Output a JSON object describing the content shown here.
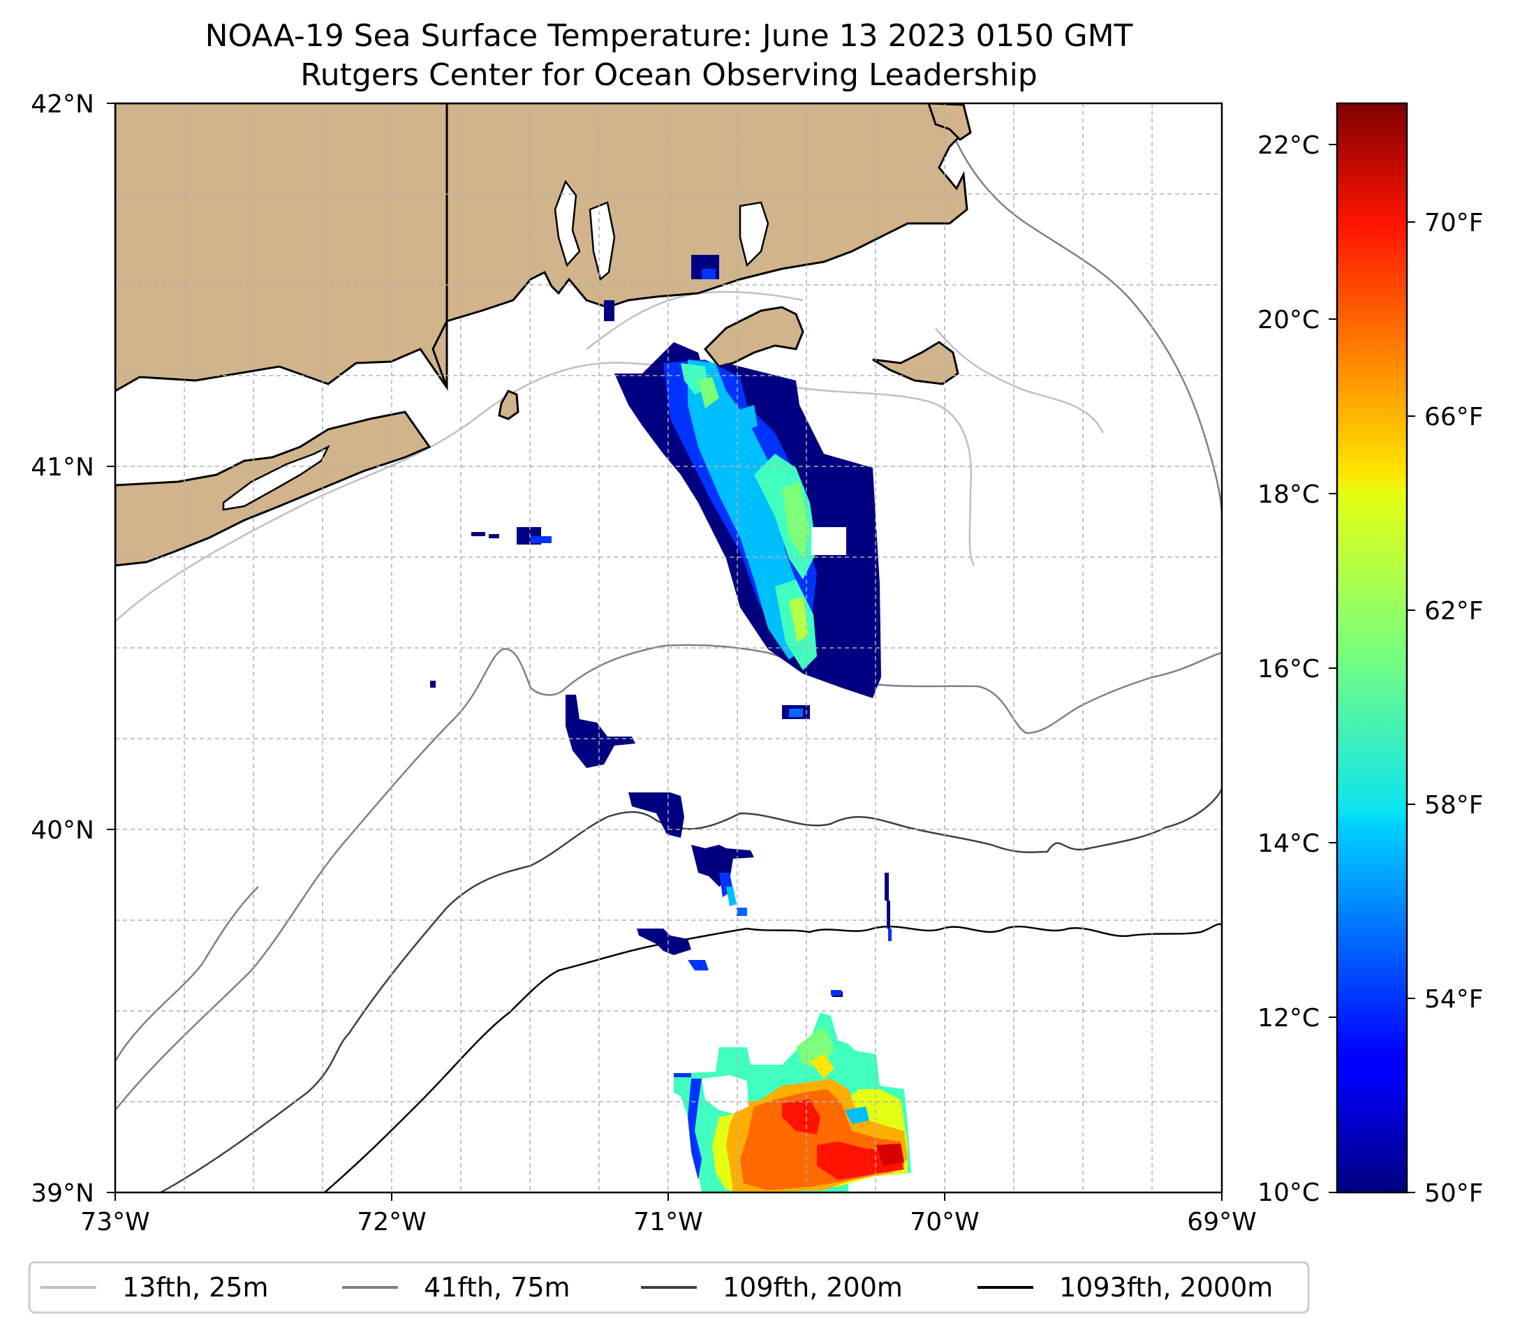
{
  "title_line1": "NOAA-19 Sea Surface Temperature: June 13 2023 0150 GMT",
  "title_line2": "Rutgers Center for Ocean Observing Leadership",
  "colors": {
    "land": "#d2b48c",
    "coast": "#000000",
    "grid": "#b0b0b0"
  },
  "chart_data": {
    "type": "heatmap",
    "title": "NOAA-19 Sea Surface Temperature: June 13 2023 0150 GMT",
    "subtitle": "Rutgers Center for Ocean Observing Leadership",
    "lon_range": [
      -73,
      -69
    ],
    "lat_range": [
      39,
      42
    ],
    "x_ticks": [
      "73°W",
      "72°W",
      "71°W",
      "70°W",
      "69°W"
    ],
    "x_tick_values": [
      -73,
      -72,
      -71,
      -70,
      -69
    ],
    "y_ticks": [
      "42°N",
      "41°N",
      "40°N",
      "39°N"
    ],
    "y_tick_values": [
      42,
      41,
      40,
      39
    ],
    "colorbar": {
      "cmap": "jet",
      "range_c": [
        10,
        22.5
      ],
      "celsius_ticks": [
        "22°C",
        "20°C",
        "18°C",
        "16°C",
        "14°C",
        "12°C",
        "10°C"
      ],
      "celsius_values": [
        22,
        20,
        18,
        16,
        14,
        12,
        10
      ],
      "fahrenheit_ticks": [
        "70°F",
        "66°F",
        "62°F",
        "58°F",
        "54°F",
        "50°F"
      ],
      "fahrenheit_values": [
        70,
        66,
        62,
        58,
        54,
        50
      ]
    },
    "legend": {
      "placement": "bottom",
      "entries": [
        {
          "label": "13fth, 25m",
          "color": "#c0c0c0"
        },
        {
          "label": "41fth, 75m",
          "color": "#808080"
        },
        {
          "label": "109fth, 200m",
          "color": "#404040"
        },
        {
          "label": "1093fth, 2000m",
          "color": "#000000"
        }
      ]
    },
    "sst_regions": [
      {
        "name": "nantucket-shoals-plume",
        "temp_range_c": [
          10,
          15.5
        ],
        "lat": [
          40.45,
          41.65
        ],
        "lon": [
          -71.2,
          -70.25
        ]
      },
      {
        "name": "shelf-break-patches",
        "temp_range_c": [
          10,
          12.5
        ],
        "lat": [
          39.6,
          40.4
        ],
        "lon": [
          -71.35,
          -70.2
        ]
      },
      {
        "name": "gulf-stream-warm-core",
        "temp_range_c": [
          11,
          21.5
        ],
        "lat": [
          39.0,
          39.55
        ],
        "lon": [
          -71.0,
          -70.15
        ]
      }
    ]
  }
}
